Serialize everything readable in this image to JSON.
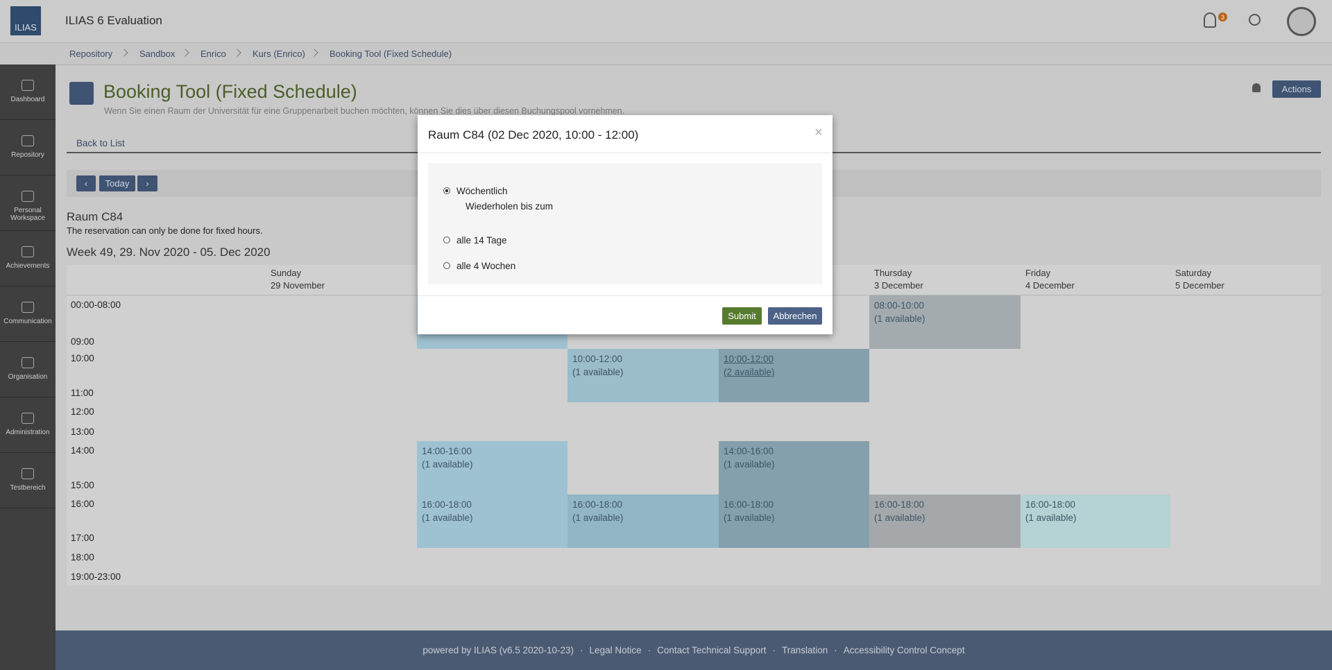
{
  "header": {
    "logo": "ILIAS",
    "title": "ILIAS 6 Evaluation",
    "notification_count": 3
  },
  "breadcrumbs": [
    "Repository",
    "Sandbox",
    "Enrico",
    "Kurs (Enrico)",
    "Booking Tool (Fixed Schedule)"
  ],
  "sidebar": [
    "Dashboard",
    "Repository",
    "Personal Workspace",
    "Achievements",
    "Communication",
    "Organisation",
    "Administration",
    "Testbereich"
  ],
  "page": {
    "title": "Booking Tool (Fixed Schedule)",
    "description": "Wenn Sie einen Raum der Universität für eine Gruppenarbeit buchen möchten, können Sie dies über diesen Buchungspool vornehmen.",
    "actions": "Actions",
    "back": "Back to List",
    "today": "Today",
    "room": "Raum C84",
    "note": "The reservation can only be done for fixed hours.",
    "week": "Week 49, 29. Nov 2020 - 05. Dec 2020"
  },
  "calendar": {
    "days": [
      {
        "name": "Sunday",
        "date": "29 November"
      },
      null,
      null,
      null,
      {
        "name": "Thursday",
        "date": "3 December"
      },
      {
        "name": "Friday",
        "date": "4 December"
      },
      {
        "name": "Saturday",
        "date": "5 December"
      }
    ],
    "times": [
      "00:00-08:00",
      "09:00",
      "10:00",
      "11:00",
      "12:00",
      "13:00",
      "14:00",
      "15:00",
      "16:00",
      "17:00",
      "18:00",
      "19:00-23:00"
    ],
    "bookings": [
      {
        "day": 4,
        "row": 0,
        "time": "08:00-10:00",
        "availability": "(1 available)",
        "color": "#a3abaf"
      },
      {
        "day": 2,
        "row": 2,
        "time": "10:00-12:00",
        "availability": "(1 available)",
        "color": "#9bbccb"
      },
      {
        "day": 3,
        "row": 2,
        "time": "10:00-12:00",
        "availability": "(2 available)",
        "color": "#84a0ad",
        "link": true
      },
      {
        "day": 1,
        "row": 6,
        "time": "14:00-16:00",
        "availability": "(1 available)",
        "color": "#9fc2d2"
      },
      {
        "day": 3,
        "row": 6,
        "time": "14:00-16:00",
        "availability": "(1 available)",
        "color": "#84a0ad"
      },
      {
        "day": 1,
        "row": 8,
        "time": "16:00-18:00",
        "availability": "(1 available)",
        "color": "#9fc2d2"
      },
      {
        "day": 2,
        "row": 8,
        "time": "16:00-18:00",
        "availability": "(1 available)",
        "color": "#92b6c6"
      },
      {
        "day": 3,
        "row": 8,
        "time": "16:00-18:00",
        "availability": "(1 available)",
        "color": "#84a0ad"
      },
      {
        "day": 4,
        "row": 8,
        "time": "16:00-18:00",
        "availability": "(1 available)",
        "color": "#a5a8aa"
      },
      {
        "day": 5,
        "row": 8,
        "time": "16:00-18:00",
        "availability": "(1 available)",
        "color": "#b5d2d4"
      }
    ]
  },
  "modal": {
    "title": "Raum C84 (02 Dec 2020, 10:00 - 12:00)",
    "close": "×",
    "options": [
      "Wöchentlich",
      "alle 14 Tage",
      "alle 4 Wochen"
    ],
    "repeat_until": "Wiederholen bis zum",
    "submit": "Submit",
    "cancel": "Abbrechen"
  },
  "footer": [
    "powered by ILIAS (v6.5 2020-10-23)",
    "Legal Notice",
    "Contact Technical Support",
    "Translation",
    "Accessibility Control Concept"
  ]
}
